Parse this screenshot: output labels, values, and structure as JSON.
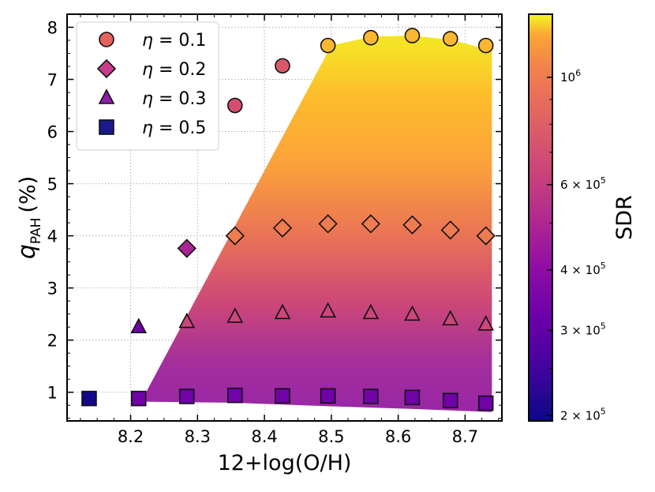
{
  "chart_data": {
    "type": "scatter",
    "xlabel": "12+log(O/H)",
    "ylabel_main": "q",
    "ylabel_sub": "PAH",
    "ylabel_unit": "(%)",
    "xlim": [
      8.105,
      8.755
    ],
    "ylim": [
      0.45,
      8.25
    ],
    "xticks": [
      8.2,
      8.3,
      8.4,
      8.5,
      8.6,
      8.7
    ],
    "xtick_labels": [
      "8.2",
      "8.3",
      "8.4",
      "8.5",
      "8.6",
      "8.7"
    ],
    "yticks": [
      1,
      2,
      3,
      4,
      5,
      6,
      7,
      8
    ],
    "ytick_labels": [
      "1",
      "2",
      "3",
      "4",
      "5",
      "6",
      "7",
      "8"
    ],
    "grid": true,
    "legend_position": "top-left",
    "colorbar": {
      "label": "SDR",
      "scale": "log",
      "range": [
        195000,
        1350000
      ],
      "colormap": "plasma",
      "ticks": [
        200000,
        300000,
        400000,
        600000,
        1000000
      ],
      "tick_labels": [
        {
          "base": "2 × 10",
          "exp": "5"
        },
        {
          "base": "3 × 10",
          "exp": "5"
        },
        {
          "base": "4 × 10",
          "exp": "5"
        },
        {
          "base": "6 × 10",
          "exp": "5"
        },
        {
          "base": "10",
          "exp": "6"
        }
      ]
    },
    "shaded_region": {
      "description": "SDR model surface",
      "upper_edge": [
        [
          8.219,
          0.9
        ],
        [
          8.5,
          7.65
        ],
        [
          8.56,
          7.82
        ],
        [
          8.62,
          7.84
        ],
        [
          8.68,
          7.76
        ],
        [
          8.74,
          7.55
        ]
      ],
      "lower_edge": [
        [
          8.219,
          0.82
        ],
        [
          8.35,
          0.8
        ],
        [
          8.5,
          0.73
        ],
        [
          8.62,
          0.68
        ],
        [
          8.74,
          0.62
        ]
      ],
      "value_at_bottom": 230000,
      "value_at_top": 1250000
    },
    "series": [
      {
        "name": "η = 0.1",
        "marker": "circle",
        "color": "#e5625e",
        "legend_label": {
          "symbol": "η",
          "rest": " = 0.1"
        },
        "points": [
          {
            "x": 8.356,
            "y": 6.5,
            "sdr": 700000
          },
          {
            "x": 8.427,
            "y": 7.26,
            "sdr": 760000
          },
          {
            "x": 8.495,
            "y": 7.65,
            "sdr": 1250000
          },
          {
            "x": 8.559,
            "y": 7.8,
            "sdr": 1250000
          },
          {
            "x": 8.621,
            "y": 7.84,
            "sdr": 1250000
          },
          {
            "x": 8.678,
            "y": 7.78,
            "sdr": 1250000
          },
          {
            "x": 8.731,
            "y": 7.65,
            "sdr": 1250000
          }
        ]
      },
      {
        "name": "η = 0.2",
        "marker": "diamond",
        "color": "#c73d8c",
        "legend_label": {
          "symbol": "η",
          "rest": " = 0.2"
        },
        "points": [
          {
            "x": 8.284,
            "y": 3.76,
            "sdr": 490000
          },
          {
            "x": 8.356,
            "y": 4.0,
            "sdr": 1000000
          },
          {
            "x": 8.427,
            "y": 4.15,
            "sdr": 1000000
          },
          {
            "x": 8.495,
            "y": 4.23,
            "sdr": 1000000
          },
          {
            "x": 8.559,
            "y": 4.23,
            "sdr": 1000000
          },
          {
            "x": 8.621,
            "y": 4.21,
            "sdr": 1000000
          },
          {
            "x": 8.678,
            "y": 4.11,
            "sdr": 1000000
          },
          {
            "x": 8.731,
            "y": 4.0,
            "sdr": 1000000
          }
        ]
      },
      {
        "name": "η = 0.3",
        "marker": "triangle",
        "color": "#8c1ea8",
        "legend_label": {
          "symbol": "η",
          "rest": " = 0.3"
        },
        "points": [
          {
            "x": 8.212,
            "y": 2.25,
            "sdr": 330000
          },
          {
            "x": 8.284,
            "y": 2.35,
            "sdr": 650000
          },
          {
            "x": 8.356,
            "y": 2.45,
            "sdr": 650000
          },
          {
            "x": 8.427,
            "y": 2.52,
            "sdr": 650000
          },
          {
            "x": 8.495,
            "y": 2.55,
            "sdr": 650000
          },
          {
            "x": 8.559,
            "y": 2.52,
            "sdr": 650000
          },
          {
            "x": 8.621,
            "y": 2.49,
            "sdr": 650000
          },
          {
            "x": 8.678,
            "y": 2.4,
            "sdr": 650000
          },
          {
            "x": 8.731,
            "y": 2.3,
            "sdr": 650000
          }
        ]
      },
      {
        "name": "η = 0.5",
        "marker": "square",
        "color": "#1a1a8c",
        "legend_label": {
          "symbol": "η",
          "rest": " = 0.5"
        },
        "points": [
          {
            "x": 8.138,
            "y": 0.88,
            "sdr": 200000
          },
          {
            "x": 8.212,
            "y": 0.88,
            "sdr": 330000
          },
          {
            "x": 8.284,
            "y": 0.92,
            "sdr": 330000
          },
          {
            "x": 8.356,
            "y": 0.94,
            "sdr": 330000
          },
          {
            "x": 8.427,
            "y": 0.93,
            "sdr": 330000
          },
          {
            "x": 8.495,
            "y": 0.93,
            "sdr": 330000
          },
          {
            "x": 8.559,
            "y": 0.92,
            "sdr": 330000
          },
          {
            "x": 8.621,
            "y": 0.9,
            "sdr": 330000
          },
          {
            "x": 8.678,
            "y": 0.84,
            "sdr": 330000
          },
          {
            "x": 8.731,
            "y": 0.79,
            "sdr": 330000
          }
        ]
      }
    ]
  }
}
